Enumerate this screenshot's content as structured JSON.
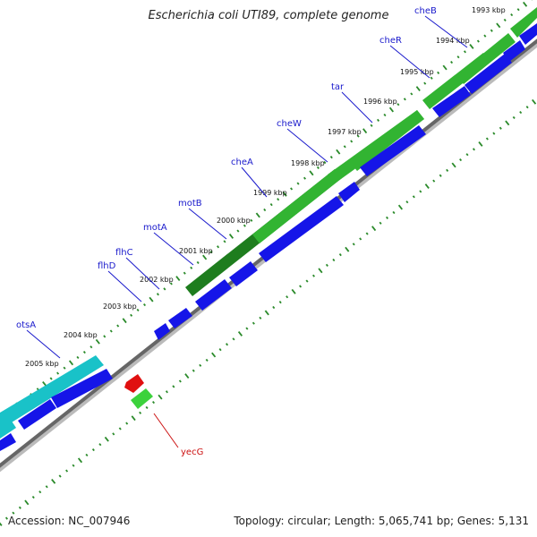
{
  "title": "Escherichia coli UTI89, complete genome",
  "footer": {
    "accession": "Accession: NC_007946",
    "summary": "Topology: circular; Length: 5,065,741 bp; Genes: 5,131"
  },
  "colors": {
    "background": "#ffffff",
    "backbone": "#666666",
    "tick": "#2a8a2a",
    "cds_forward": "#1515e8",
    "gene_forward": "#32b432",
    "gene_dark_forward": "#1e7d1e",
    "gene_teal": "#19c2c8",
    "cds_reverse": "#e01010",
    "gene_reverse": "#3cd23c",
    "label_forward": "#1a1acc",
    "label_reverse": "#cc1111"
  },
  "kbp_labels": [
    "1993 kbp",
    "1994 kbp",
    "1995 kbp",
    "1996 kbp",
    "1997 kbp",
    "1998 kbp",
    "1999 kbp",
    "2000 kbp",
    "2001 kbp",
    "2002 kbp",
    "2003 kbp",
    "2004 kbp",
    "2005 kbp"
  ],
  "gene_labels": {
    "forward": [
      "cheB",
      "cheR",
      "tar",
      "cheW",
      "cheA",
      "motB",
      "motA",
      "flhC",
      "flhD",
      "otsA"
    ],
    "reverse": [
      "yecG"
    ]
  }
}
